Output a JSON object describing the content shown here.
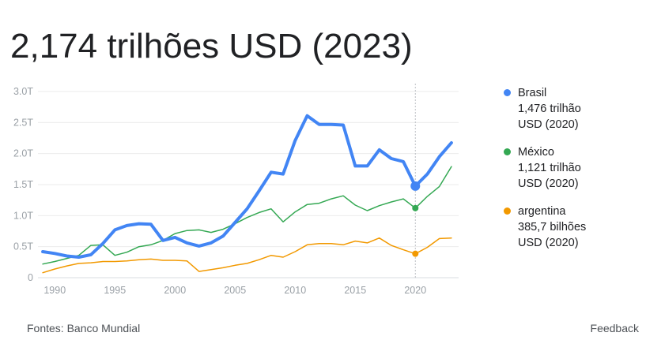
{
  "headline": "2,174 trilhões USD (2023)",
  "footer": {
    "source": "Fontes: Banco Mundial",
    "feedback": "Feedback"
  },
  "colors": {
    "Brasil": "#4285f4",
    "México": "#34a853",
    "argentina": "#f29900"
  },
  "legend": [
    {
      "name": "Brasil",
      "value": "1,476 trilhão",
      "unit": "USD (2020)",
      "color": "#4285f4"
    },
    {
      "name": "México",
      "value": "1,121 trilhão",
      "unit": "USD (2020)",
      "color": "#34a853"
    },
    {
      "name": "argentina",
      "value": "385,7 bilhões",
      "unit": "USD (2020)",
      "color": "#f29900"
    }
  ],
  "chart_data": {
    "type": "line",
    "title": "2,174 trilhões USD (2023)",
    "xlabel": "",
    "ylabel": "",
    "x": [
      1989,
      1990,
      1991,
      1992,
      1993,
      1994,
      1995,
      1996,
      1997,
      1998,
      1999,
      2000,
      2001,
      2002,
      2003,
      2004,
      2005,
      2006,
      2007,
      2008,
      2009,
      2010,
      2011,
      2012,
      2013,
      2014,
      2015,
      2016,
      2017,
      2018,
      2019,
      2020,
      2021,
      2022,
      2023
    ],
    "xticks": [
      1990,
      1995,
      2000,
      2005,
      2010,
      2015,
      2020
    ],
    "yticks": [
      {
        "value": 0,
        "label": "0"
      },
      {
        "value": 0.5,
        "label": "0.5T"
      },
      {
        "value": 1.0,
        "label": "1.0T"
      },
      {
        "value": 1.5,
        "label": "1.5T"
      },
      {
        "value": 2.0,
        "label": "2.0T"
      },
      {
        "value": 2.5,
        "label": "2.5T"
      },
      {
        "value": 3.0,
        "label": "3.0T"
      }
    ],
    "ylim": [
      0,
      3.0
    ],
    "xlim": [
      1988.6,
      2023.6
    ],
    "grid": true,
    "legend_position": "right",
    "highlight_x": 2020,
    "series": [
      {
        "name": "Brasil",
        "color": "#4285f4",
        "width": 4,
        "values": [
          0.42,
          0.39,
          0.35,
          0.33,
          0.37,
          0.55,
          0.77,
          0.84,
          0.87,
          0.86,
          0.6,
          0.65,
          0.56,
          0.51,
          0.56,
          0.67,
          0.89,
          1.11,
          1.4,
          1.7,
          1.67,
          2.21,
          2.61,
          2.47,
          2.47,
          2.46,
          1.8,
          1.8,
          2.06,
          1.92,
          1.87,
          1.476,
          1.67,
          1.95,
          2.174
        ]
      },
      {
        "name": "México",
        "color": "#34a853",
        "width": 1.5,
        "values": [
          0.22,
          0.26,
          0.31,
          0.36,
          0.52,
          0.53,
          0.36,
          0.41,
          0.5,
          0.53,
          0.6,
          0.71,
          0.76,
          0.77,
          0.73,
          0.78,
          0.87,
          0.97,
          1.05,
          1.11,
          0.9,
          1.06,
          1.18,
          1.2,
          1.27,
          1.32,
          1.17,
          1.08,
          1.16,
          1.22,
          1.27,
          1.121,
          1.31,
          1.47,
          1.79
        ]
      },
      {
        "name": "argentina",
        "color": "#f29900",
        "width": 1.5,
        "values": [
          0.08,
          0.14,
          0.19,
          0.23,
          0.24,
          0.26,
          0.26,
          0.27,
          0.29,
          0.3,
          0.28,
          0.28,
          0.27,
          0.1,
          0.13,
          0.16,
          0.2,
          0.23,
          0.29,
          0.36,
          0.33,
          0.42,
          0.53,
          0.55,
          0.55,
          0.53,
          0.59,
          0.56,
          0.64,
          0.52,
          0.45,
          0.3857,
          0.49,
          0.63,
          0.64
        ]
      }
    ]
  }
}
